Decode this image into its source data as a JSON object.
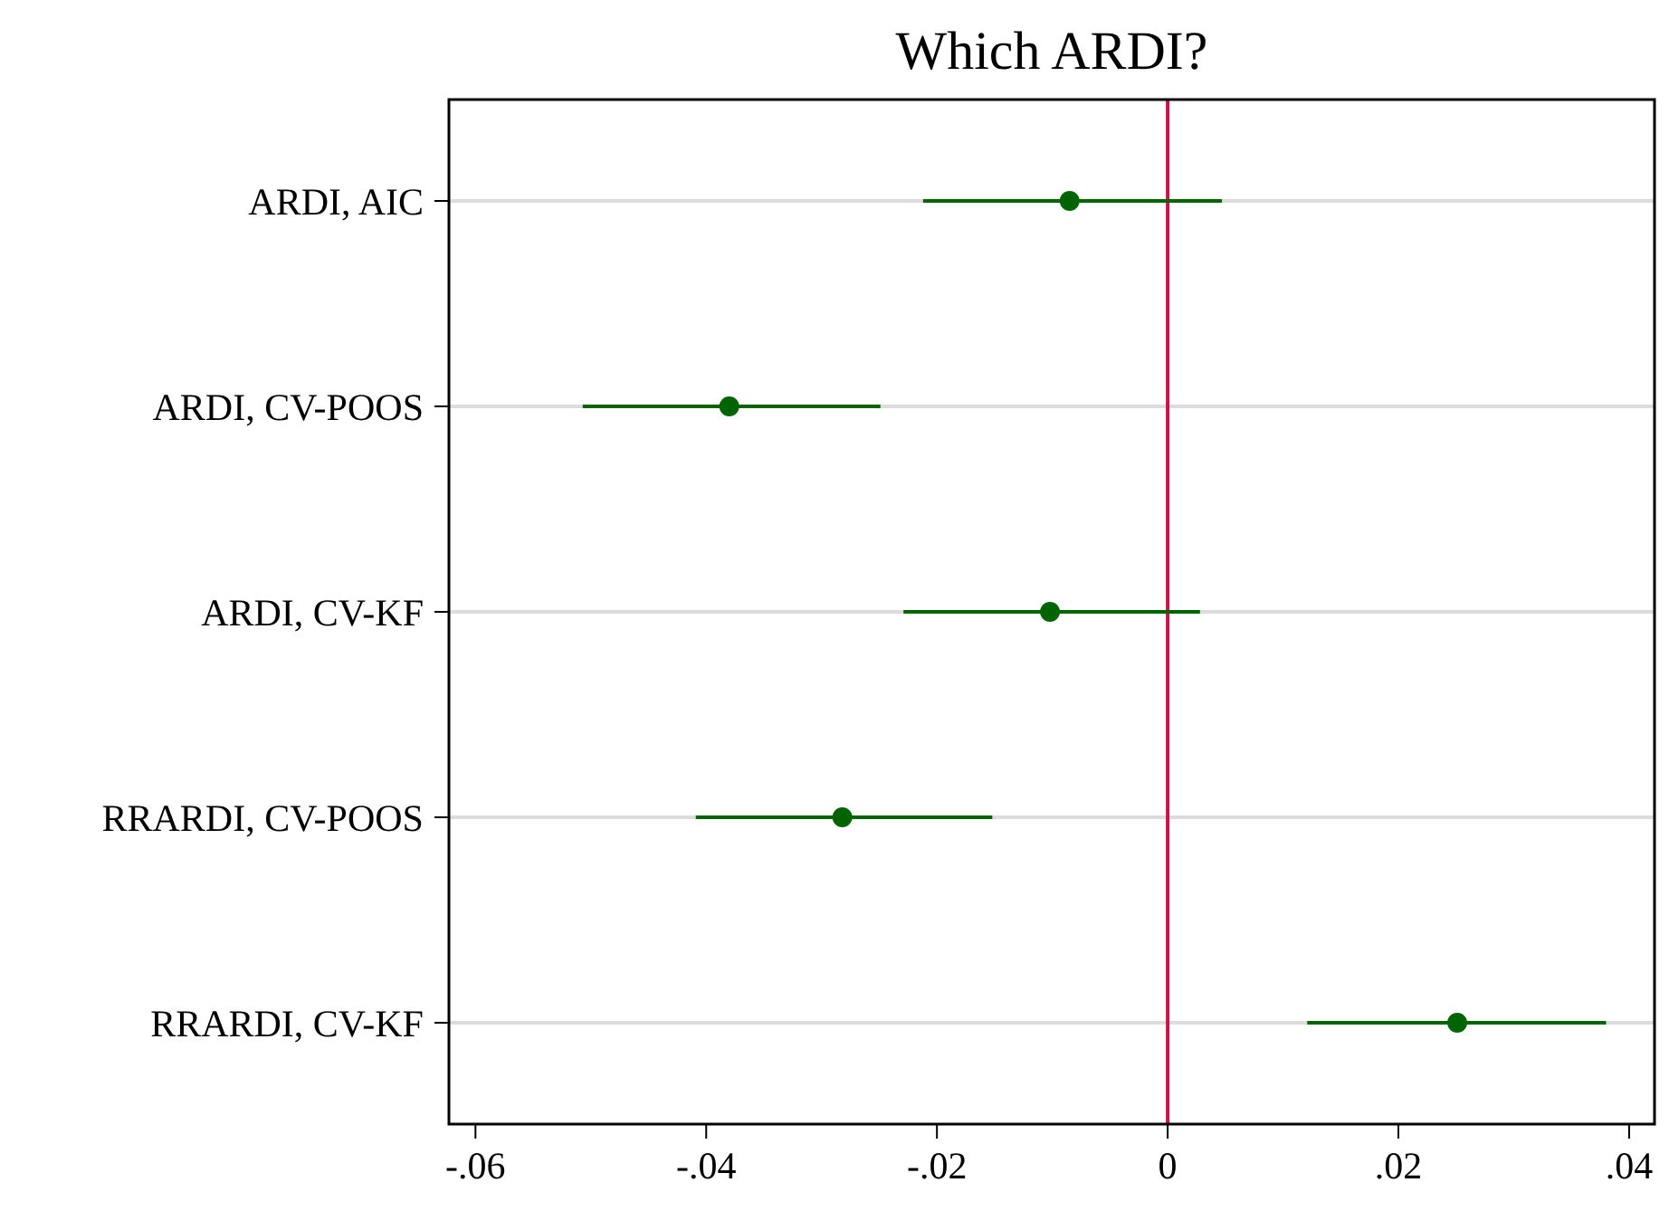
{
  "chart_data": {
    "type": "scatter",
    "title": "Which ARDI?",
    "orientation": "horizontal",
    "categories": [
      "ARDI, AIC",
      "ARDI, CV-POOS",
      "ARDI, CV-KF",
      "RRARDI, CV-POOS",
      "RRARDI, CV-KF"
    ],
    "values": [
      -0.0085,
      -0.038,
      -0.0102,
      -0.0282,
      0.0251
    ],
    "errors": [
      [
        -0.0212,
        0.0047
      ],
      [
        -0.0507,
        -0.0249
      ],
      [
        -0.0229,
        0.0028
      ],
      [
        -0.0409,
        -0.0152
      ],
      [
        0.0121,
        0.038
      ]
    ],
    "color": "#006400",
    "marker": "circle",
    "grid": "y",
    "xlim": [
      -0.0623,
      0.0422
    ],
    "xticks": [
      {
        "value": -0.06,
        "label": "-.06"
      },
      {
        "value": -0.04,
        "label": "-.04"
      },
      {
        "value": -0.02,
        "label": "-.02"
      },
      0,
      {
        "value": 0.02,
        "label": ".02"
      },
      {
        "value": 0.04,
        "label": ".04"
      }
    ],
    "ref_lines": [
      {
        "axis": "x",
        "value": 0,
        "color": "#c0174a"
      }
    ]
  }
}
